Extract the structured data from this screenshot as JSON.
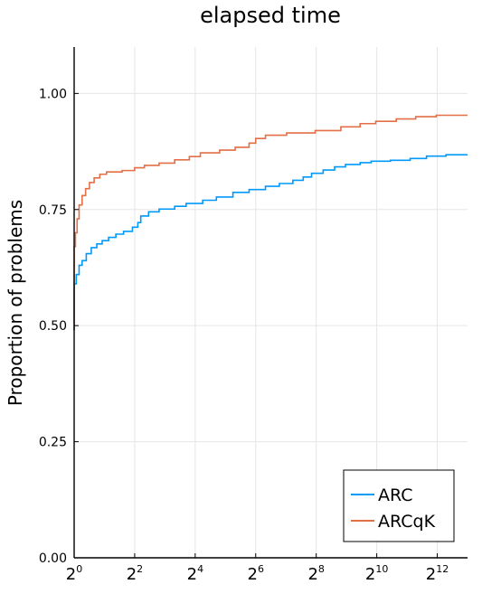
{
  "chart_data": {
    "type": "line",
    "step": true,
    "title": "elapsed time",
    "xlabel": "",
    "ylabel": "Proportion of problems",
    "xscale": "log2",
    "xlim": [
      1,
      8192
    ],
    "ylim": [
      0,
      1.1
    ],
    "grid": true,
    "legend_position": "bottom-right",
    "x_ticks": [
      {
        "base": "2",
        "exp": "0",
        "value": 1
      },
      {
        "base": "2",
        "exp": "2",
        "value": 4
      },
      {
        "base": "2",
        "exp": "4",
        "value": 16
      },
      {
        "base": "2",
        "exp": "6",
        "value": 64
      },
      {
        "base": "2",
        "exp": "8",
        "value": 256
      },
      {
        "base": "2",
        "exp": "10",
        "value": 1024
      },
      {
        "base": "2",
        "exp": "12",
        "value": 4096
      }
    ],
    "y_ticks": [
      {
        "label": "0.00",
        "value": 0.0
      },
      {
        "label": "0.25",
        "value": 0.25
      },
      {
        "label": "0.50",
        "value": 0.5
      },
      {
        "label": "0.75",
        "value": 0.75
      },
      {
        "label": "1.00",
        "value": 1.0
      }
    ],
    "series": [
      {
        "name": "ARC",
        "color": "#009AFA",
        "points": [
          [
            1.0,
            0.49
          ],
          [
            1.0,
            0.59
          ],
          [
            1.05,
            0.61
          ],
          [
            1.12,
            0.63
          ],
          [
            1.2,
            0.64
          ],
          [
            1.32,
            0.655
          ],
          [
            1.48,
            0.668
          ],
          [
            1.68,
            0.676
          ],
          [
            1.9,
            0.683
          ],
          [
            2.2,
            0.69
          ],
          [
            2.6,
            0.697
          ],
          [
            3.1,
            0.703
          ],
          [
            3.8,
            0.712
          ],
          [
            4.3,
            0.722
          ],
          [
            4.6,
            0.736
          ],
          [
            5.5,
            0.745
          ],
          [
            7.0,
            0.751
          ],
          [
            10.0,
            0.757
          ],
          [
            13.0,
            0.763
          ],
          [
            19.0,
            0.77
          ],
          [
            26.0,
            0.777
          ],
          [
            38.0,
            0.787
          ],
          [
            55.0,
            0.793
          ],
          [
            80.0,
            0.8
          ],
          [
            110.0,
            0.806
          ],
          [
            150.0,
            0.813
          ],
          [
            190.0,
            0.82
          ],
          [
            230.0,
            0.828
          ],
          [
            300.0,
            0.835
          ],
          [
            390.0,
            0.842
          ],
          [
            500.0,
            0.847
          ],
          [
            700.0,
            0.851
          ],
          [
            900.0,
            0.854
          ],
          [
            1400.0,
            0.856
          ],
          [
            2200.0,
            0.86
          ],
          [
            3200.0,
            0.865
          ],
          [
            5000.0,
            0.868
          ],
          [
            8192.0,
            0.868
          ]
        ]
      },
      {
        "name": "ARCqK",
        "color": "#E26F46",
        "points": [
          [
            1.0,
            0.49
          ],
          [
            1.0,
            0.67
          ],
          [
            1.03,
            0.7
          ],
          [
            1.07,
            0.73
          ],
          [
            1.12,
            0.76
          ],
          [
            1.2,
            0.78
          ],
          [
            1.3,
            0.795
          ],
          [
            1.42,
            0.808
          ],
          [
            1.58,
            0.818
          ],
          [
            1.8,
            0.826
          ],
          [
            2.1,
            0.831
          ],
          [
            3.0,
            0.834
          ],
          [
            4.0,
            0.84
          ],
          [
            5.0,
            0.845
          ],
          [
            7.0,
            0.85
          ],
          [
            10.0,
            0.857
          ],
          [
            14.0,
            0.864
          ],
          [
            18.0,
            0.872
          ],
          [
            28.0,
            0.878
          ],
          [
            40.0,
            0.884
          ],
          [
            55.0,
            0.893
          ],
          [
            64.0,
            0.903
          ],
          [
            80.0,
            0.91
          ],
          [
            130.0,
            0.915
          ],
          [
            250.0,
            0.92
          ],
          [
            450.0,
            0.928
          ],
          [
            700.0,
            0.935
          ],
          [
            1000.0,
            0.94
          ],
          [
            1600.0,
            0.945
          ],
          [
            2500.0,
            0.95
          ],
          [
            4000.0,
            0.953
          ],
          [
            8192.0,
            0.953
          ]
        ]
      }
    ]
  }
}
